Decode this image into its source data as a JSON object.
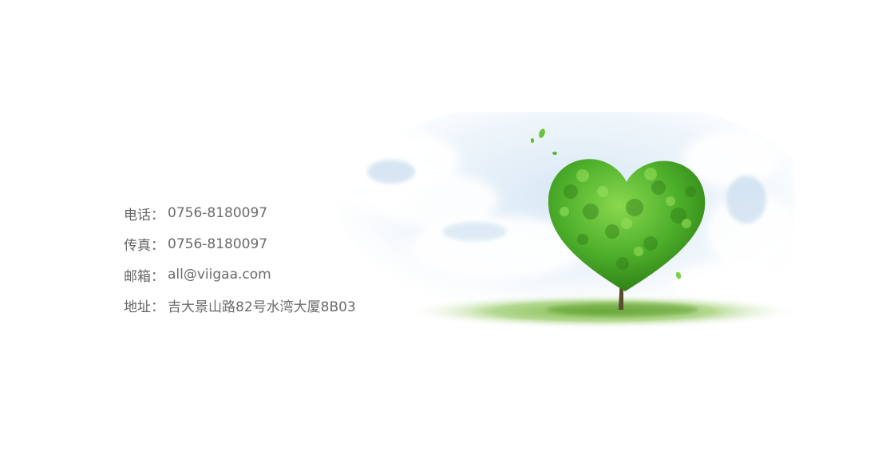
{
  "contact": {
    "rows": [
      {
        "label": "电话",
        "sep": "：",
        "value": "0756-8180097"
      },
      {
        "label": "传真",
        "sep": "：",
        "value": "0756-8180097"
      },
      {
        "label": "邮箱",
        "sep": "：",
        "value": "all@viigaa.com"
      },
      {
        "label": "地址",
        "sep": "：",
        "value": "吉大景山路82号水湾大厦8B03"
      }
    ]
  },
  "illustration": {
    "subject": "heart-shaped-tree-on-grass",
    "colors": {
      "foliage": "#4caf2a",
      "foliage_dark": "#2f7d16",
      "foliage_light": "#7fd24a",
      "grass": "#8cc65a",
      "sky": "#dbe9f5",
      "cloud": "#ffffff",
      "trunk": "#5a4a2e"
    }
  }
}
